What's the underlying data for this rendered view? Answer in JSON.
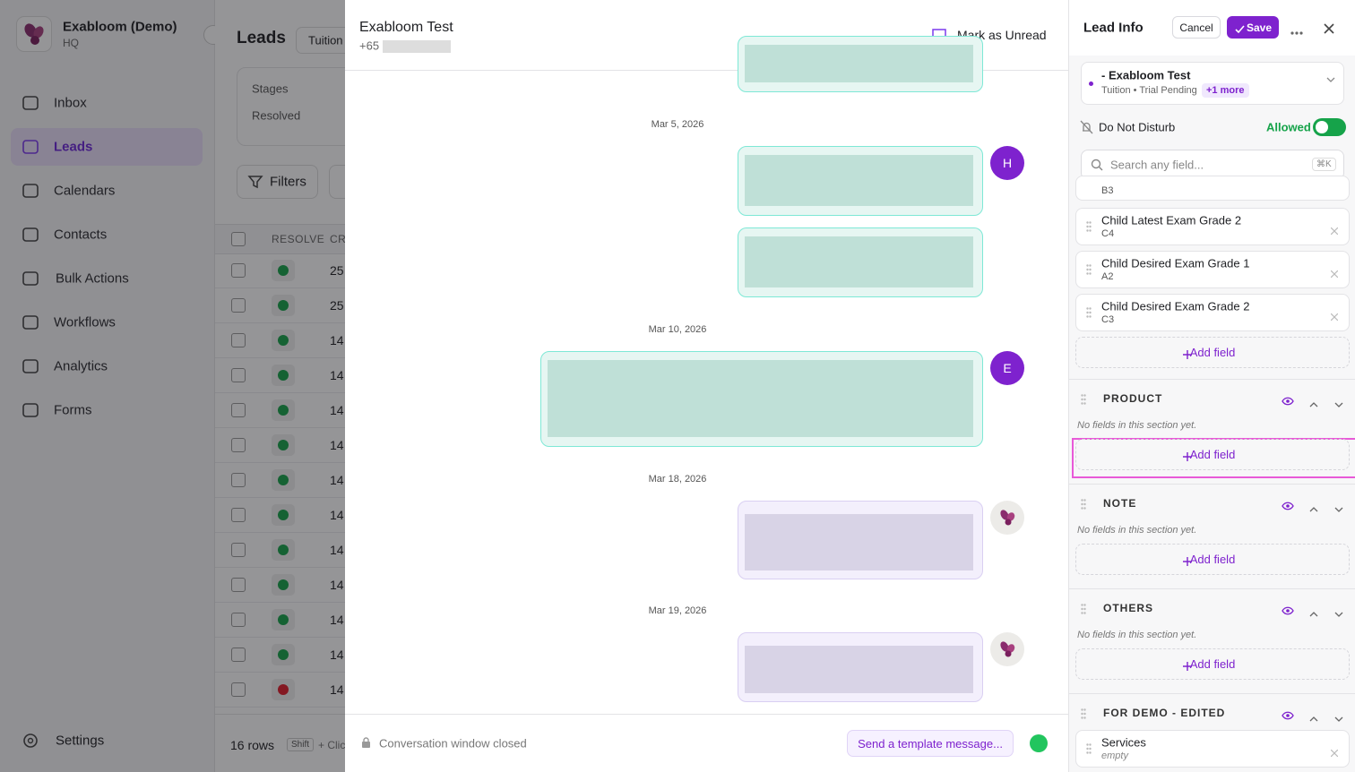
{
  "sidebar": {
    "workspace": "Exabloom (Demo)",
    "subtitle": "HQ",
    "nav": [
      "Inbox",
      "Leads",
      "Calendars",
      "Contacts",
      "Bulk Actions",
      "Workflows",
      "Analytics",
      "Forms"
    ],
    "active": 1,
    "settings": "Settings"
  },
  "leads": {
    "title": "Leads",
    "tab": "Tuition",
    "stages": "Stages",
    "resolved": "Resolved",
    "filters": "Filters",
    "columns": [
      "RESOLVE",
      "CR"
    ],
    "rows": [
      {
        "status": "green",
        "value": 25
      },
      {
        "status": "green",
        "value": 25
      },
      {
        "status": "green",
        "value": 14
      },
      {
        "status": "green",
        "value": 14
      },
      {
        "status": "green",
        "value": 14
      },
      {
        "status": "green",
        "value": 14
      },
      {
        "status": "green",
        "value": 14
      },
      {
        "status": "green",
        "value": 14
      },
      {
        "status": "green",
        "value": 14
      },
      {
        "status": "green",
        "value": 14
      },
      {
        "status": "green",
        "value": 14
      },
      {
        "status": "green",
        "value": 14
      },
      {
        "status": "red",
        "value": 14
      }
    ],
    "row_count": "16 rows",
    "key": "Shift",
    "hint": "+ Clic"
  },
  "chat": {
    "name": "Exabloom Test",
    "phone": "+65",
    "mark_unread": "Mark as Unread",
    "dates": [
      "Mar 5, 2026",
      "Mar 10, 2026",
      "Mar 18, 2026",
      "Mar 19, 2026"
    ],
    "avatars": [
      "H",
      "E"
    ],
    "closed": "Conversation window closed",
    "template": "Send a template message..."
  },
  "lead_info": {
    "title": "Lead Info",
    "cancel": "Cancel",
    "save": "Save",
    "contact": {
      "name": "- Exabloom Test",
      "tags": "Tuition • Trial Pending",
      "more": "+1 more"
    },
    "dnd": "Do Not Disturb",
    "dnd_status": "Allowed",
    "search": "Search any field...",
    "shortcut": "⌘K",
    "partial_value": "B3",
    "fields": [
      {
        "label": "Child Latest Exam Grade 2",
        "value": "C4"
      },
      {
        "label": "Child Desired Exam Grade 1",
        "value": "A2"
      },
      {
        "label": "Child Desired Exam Grade 2",
        "value": "C3"
      }
    ],
    "add_field": "Add field",
    "sections": [
      {
        "name": "PRODUCT",
        "empty": "No fields in this section yet."
      },
      {
        "name": "NOTE",
        "empty": "No fields in this section yet."
      },
      {
        "name": "OTHERS",
        "empty": "No fields in this section yet."
      },
      {
        "name": "FOR DEMO - EDITED",
        "fields": [
          {
            "label": "Services",
            "value": "empty"
          }
        ]
      }
    ]
  }
}
